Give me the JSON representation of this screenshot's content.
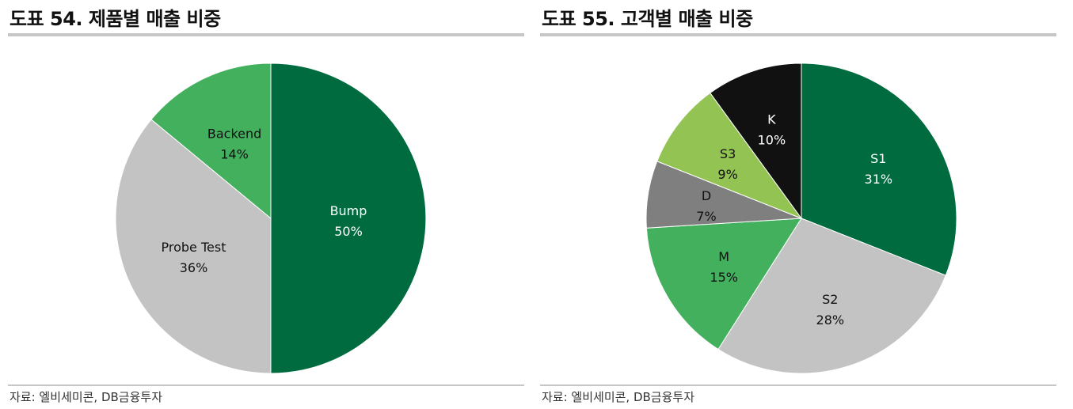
{
  "panels": [
    {
      "title": "도표 54. 제품별 매출 비중",
      "source": "자료: 엘비세미콘, DB금융투자"
    },
    {
      "title": "도표 55. 고객별 매출 비중",
      "source": "자료: 엘비세미콘, DB금융투자"
    }
  ],
  "chart_data": [
    {
      "type": "pie",
      "title": "도표 54. 제품별 매출 비중",
      "start_angle": "12 o'clock",
      "direction": "clockwise",
      "slices": [
        {
          "label": "Bump",
          "value": 50,
          "value_label": "50%",
          "color": "#006b3f",
          "text_color": "#ffffff"
        },
        {
          "label": "Probe Test",
          "value": 36,
          "value_label": "36%",
          "color": "#c3c3c3",
          "text_color": "#111111"
        },
        {
          "label": "Backend",
          "value": 14,
          "value_label": "14%",
          "color": "#42b05d",
          "text_color": "#111111"
        }
      ]
    },
    {
      "type": "pie",
      "title": "도표 55. 고객별 매출 비중",
      "start_angle": "12 o'clock",
      "direction": "clockwise",
      "slices": [
        {
          "label": "S1",
          "value": 31,
          "value_label": "31%",
          "color": "#006b3f",
          "text_color": "#ffffff"
        },
        {
          "label": "S2",
          "value": 28,
          "value_label": "28%",
          "color": "#c3c3c3",
          "text_color": "#111111"
        },
        {
          "label": "M",
          "value": 15,
          "value_label": "15%",
          "color": "#42b05d",
          "text_color": "#111111"
        },
        {
          "label": "D",
          "value": 7,
          "value_label": "7%",
          "color": "#7f7f7f",
          "text_color": "#111111"
        },
        {
          "label": "S3",
          "value": 9,
          "value_label": "9%",
          "color": "#92c353",
          "text_color": "#111111"
        },
        {
          "label": "K",
          "value": 10,
          "value_label": "10%",
          "color": "#111111",
          "text_color": "#ffffff"
        }
      ]
    }
  ]
}
